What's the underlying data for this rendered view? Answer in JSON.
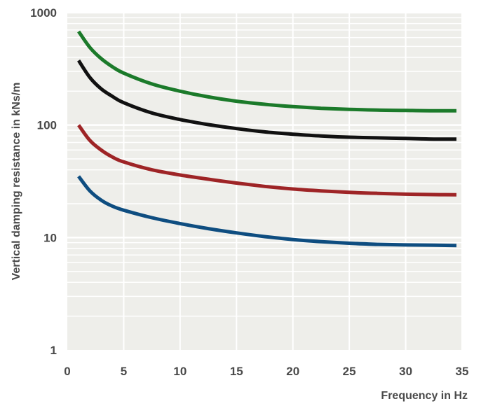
{
  "chart_data": {
    "type": "line",
    "title": "",
    "xlabel": "Frequency in Hz",
    "ylabel": "Vertical damping resistance in kNs/m",
    "xlim": [
      0,
      35
    ],
    "ylim": [
      1,
      1000
    ],
    "yscale": "log",
    "x_ticks": [
      0,
      5,
      10,
      15,
      20,
      25,
      30,
      35
    ],
    "y_ticks": [
      1,
      10,
      100,
      1000
    ],
    "y_tick_labels": [
      "1",
      "10",
      "100",
      "1000"
    ],
    "grid": true,
    "legend": "none",
    "x": [
      1,
      2,
      3,
      4,
      5,
      7.5,
      10,
      12.5,
      15,
      17.5,
      20,
      22.5,
      25,
      27.5,
      30,
      32.5,
      34.5
    ],
    "series": [
      {
        "color": "#1b7a2a",
        "values": [
          680,
          490,
          390,
          330,
          290,
          232,
          200,
          178,
          163,
          153,
          146,
          141,
          138,
          136,
          135,
          134,
          134
        ]
      },
      {
        "color": "#111111",
        "values": [
          375,
          265,
          210,
          180,
          158,
          128,
          112,
          101,
          93,
          87,
          83,
          80,
          78,
          77,
          76,
          75,
          75
        ]
      },
      {
        "color": "#9e2426",
        "values": [
          100,
          73,
          60,
          52,
          47,
          40,
          36,
          33,
          30.5,
          28.5,
          27,
          26,
          25.2,
          24.7,
          24.3,
          24.1,
          24
        ]
      },
      {
        "color": "#0e4d80",
        "values": [
          35,
          26,
          21.5,
          19,
          17.5,
          15,
          13.3,
          12,
          11,
          10.2,
          9.6,
          9.2,
          8.9,
          8.7,
          8.6,
          8.55,
          8.5
        ]
      }
    ]
  }
}
